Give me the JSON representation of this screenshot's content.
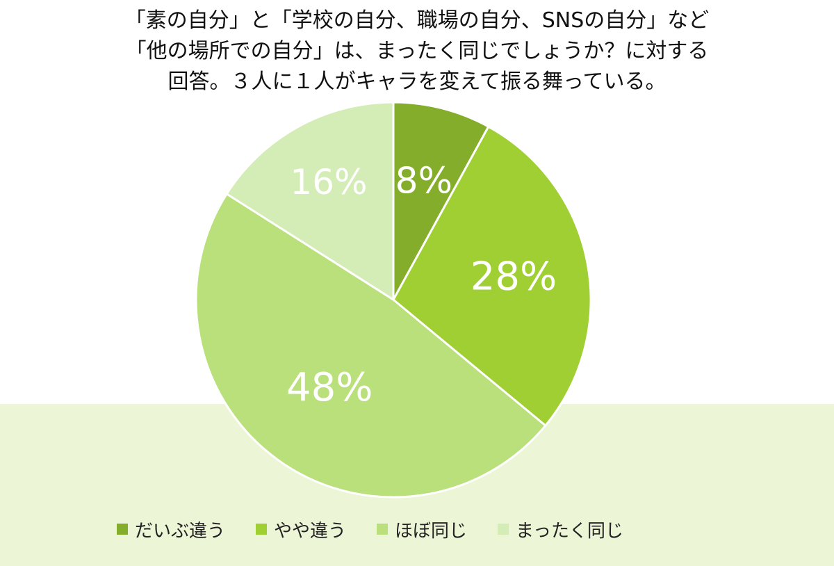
{
  "title_lines": [
    "「素の自分」と「学校の自分、職場の自分、SNSの自分」など",
    "「他の場所での自分」は、まったく同じでしょうか？に対する",
    "回答。３人に１人がキャラを変えて振る舞っている。"
  ],
  "chart_data": {
    "type": "pie",
    "slices": [
      {
        "label": "だいぶ違う",
        "value": 8,
        "display": "8%",
        "color": "#84ad2c"
      },
      {
        "label": "やや違う",
        "value": 28,
        "display": "28%",
        "color": "#9fcf33"
      },
      {
        "label": "ほぼ同じ",
        "value": 48,
        "display": "48%",
        "color": "#b9e07a"
      },
      {
        "label": "まったく同じ",
        "value": 16,
        "display": "16%",
        "color": "#d4ecb6"
      }
    ],
    "legend_position": "bottom"
  },
  "colors": {
    "slice_border": "#ffffff",
    "slice_label": "#ffffff",
    "bottom_band": "#ecf6d6"
  }
}
